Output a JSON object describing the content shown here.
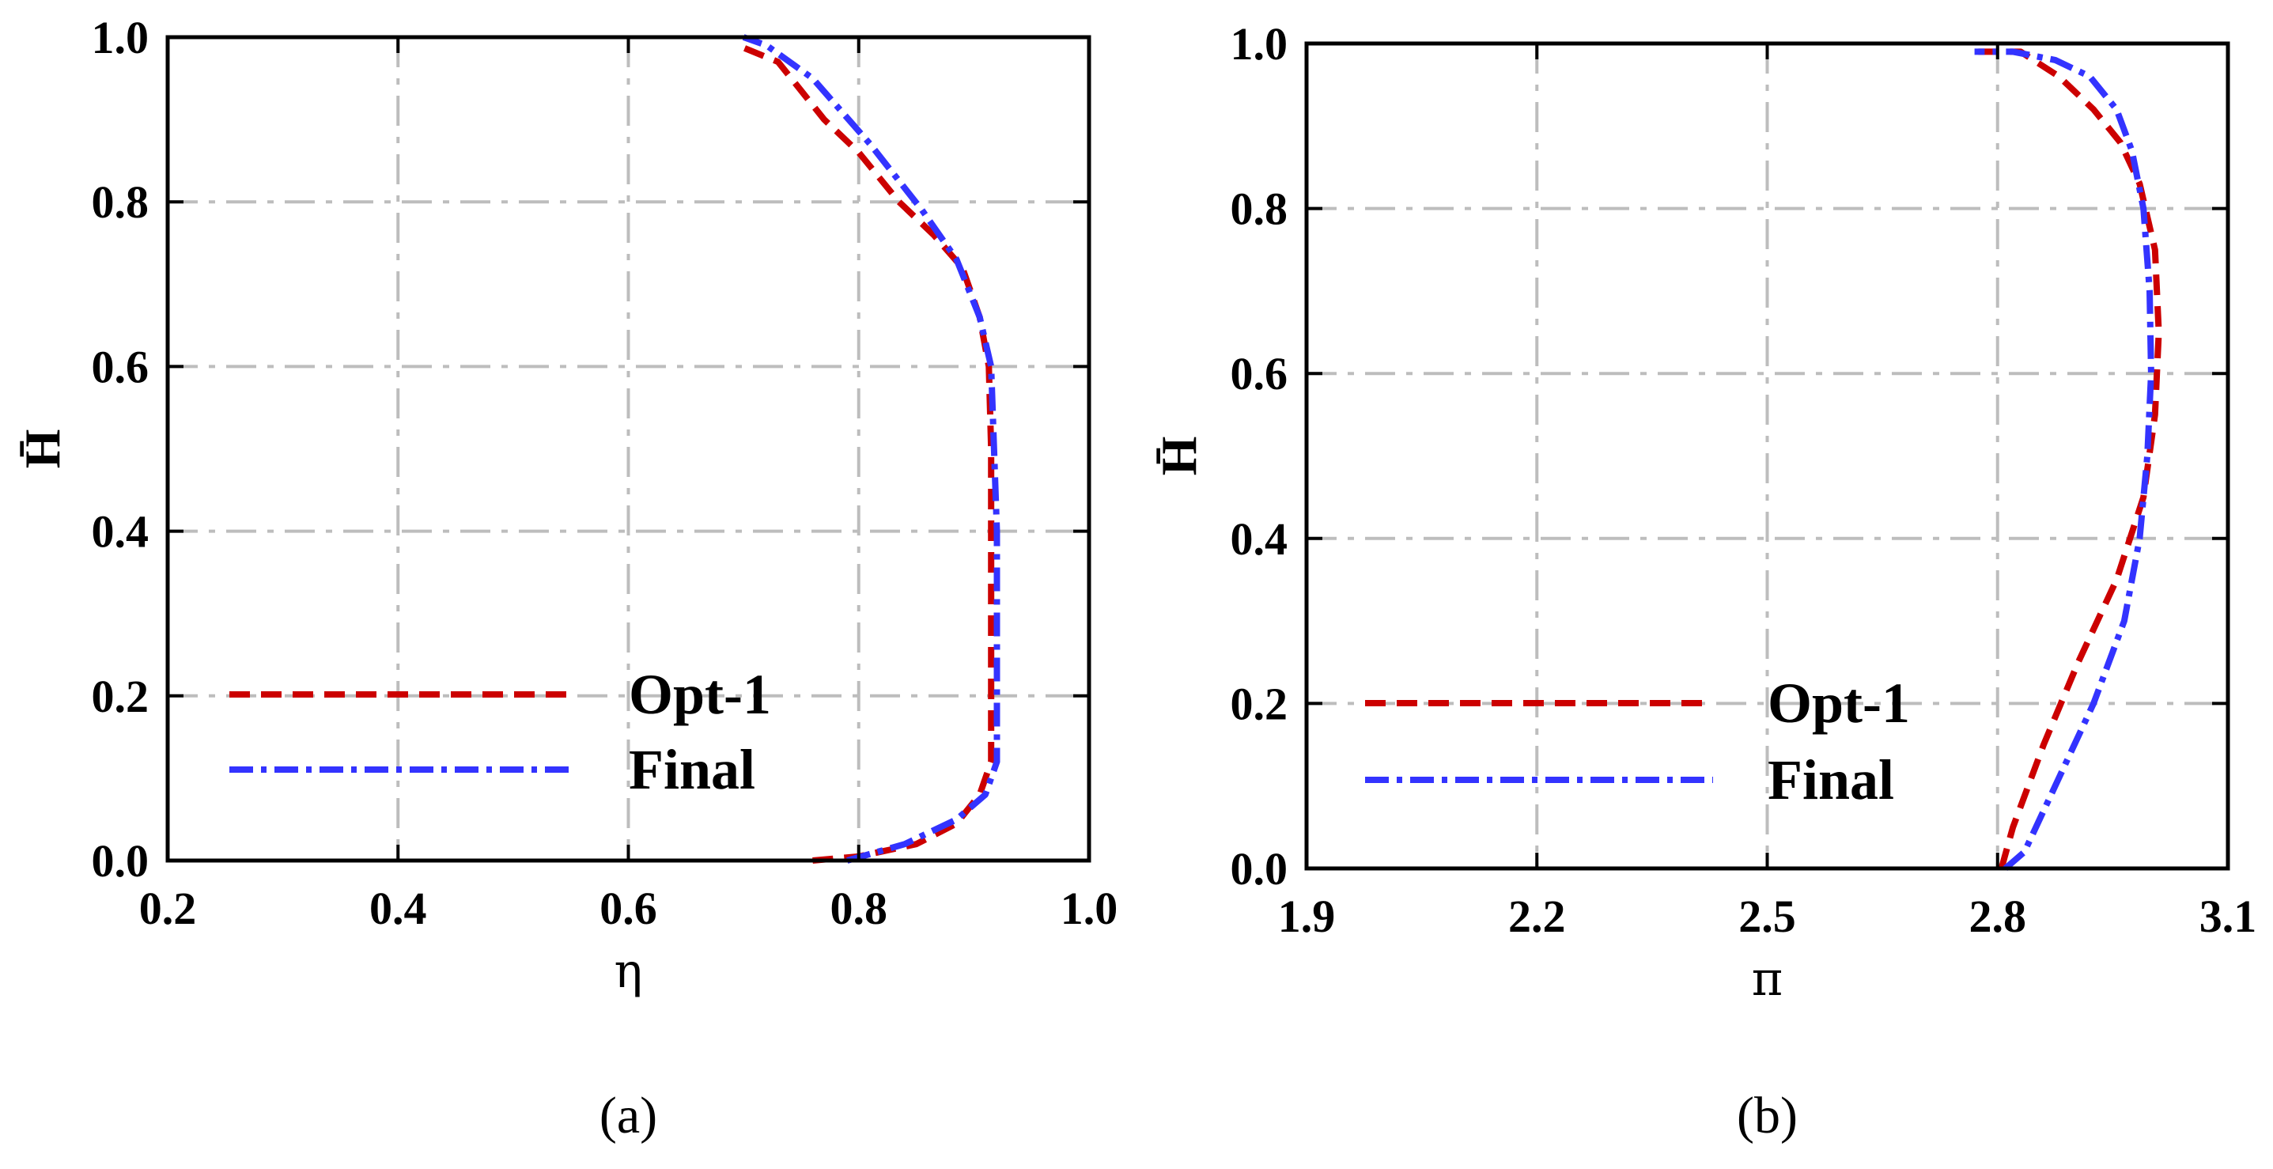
{
  "chart_data": [
    {
      "type": "line",
      "panel": "(a)",
      "xlabel": "η",
      "ylabel": "H̄",
      "xlim": [
        0.2,
        1.0
      ],
      "ylim": [
        0.0,
        1.0
      ],
      "xticks": [
        "0.2",
        "0.4",
        "0.6",
        "0.8",
        "1.0"
      ],
      "yticks": [
        "0.0",
        "0.2",
        "0.4",
        "0.6",
        "0.8",
        "1.0"
      ],
      "grid": true,
      "legend_position": "lower-left",
      "series": [
        {
          "name": "Opt-1",
          "color": "#cc0000",
          "style": "dashed",
          "x": [
            0.76,
            0.8,
            0.85,
            0.885,
            0.905,
            0.915,
            0.915,
            0.915,
            0.913,
            0.905,
            0.89,
            0.865,
            0.835,
            0.8,
            0.77,
            0.73,
            0.695
          ],
          "y": [
            0.0,
            0.005,
            0.02,
            0.045,
            0.08,
            0.12,
            0.3,
            0.5,
            0.6,
            0.66,
            0.72,
            0.76,
            0.8,
            0.86,
            0.9,
            0.97,
            0.99
          ]
        },
        {
          "name": "Final",
          "color": "#3333ff",
          "style": "dashdot",
          "x": [
            0.79,
            0.84,
            0.885,
            0.91,
            0.92,
            0.92,
            0.915,
            0.905,
            0.885,
            0.855,
            0.81,
            0.76,
            0.72,
            0.7
          ],
          "y": [
            0.0,
            0.02,
            0.05,
            0.08,
            0.12,
            0.4,
            0.6,
            0.66,
            0.73,
            0.79,
            0.87,
            0.95,
            0.99,
            1.0
          ]
        }
      ]
    },
    {
      "type": "line",
      "panel": "(b)",
      "xlabel": "π",
      "ylabel": "H̄",
      "xlim": [
        1.9,
        3.1
      ],
      "ylim": [
        0.0,
        1.0
      ],
      "xticks": [
        "1.9",
        "2.2",
        "2.5",
        "2.8",
        "3.1"
      ],
      "yticks": [
        "0.0",
        "0.2",
        "0.4",
        "0.6",
        "0.8",
        "1.0"
      ],
      "grid": true,
      "legend_position": "lower-left",
      "series": [
        {
          "name": "Opt-1",
          "color": "#cc0000",
          "style": "dashed",
          "x": [
            2.805,
            2.82,
            2.86,
            2.905,
            2.955,
            2.99,
            3.005,
            3.01,
            3.005,
            2.985,
            2.96,
            2.925,
            2.88,
            2.83,
            2.77
          ],
          "y": [
            0.0,
            0.05,
            0.15,
            0.25,
            0.35,
            0.45,
            0.55,
            0.65,
            0.75,
            0.83,
            0.88,
            0.92,
            0.96,
            0.99,
            0.99
          ]
        },
        {
          "name": "Final",
          "color": "#3333ff",
          "style": "dashdot",
          "x": [
            2.81,
            2.835,
            2.875,
            2.925,
            2.965,
            2.985,
            2.995,
            3.0,
            2.998,
            2.99,
            2.975,
            2.955,
            2.92,
            2.875,
            2.82,
            2.77
          ],
          "y": [
            0.0,
            0.02,
            0.1,
            0.2,
            0.3,
            0.4,
            0.5,
            0.6,
            0.7,
            0.8,
            0.87,
            0.92,
            0.96,
            0.98,
            0.99,
            0.99
          ]
        }
      ]
    }
  ]
}
